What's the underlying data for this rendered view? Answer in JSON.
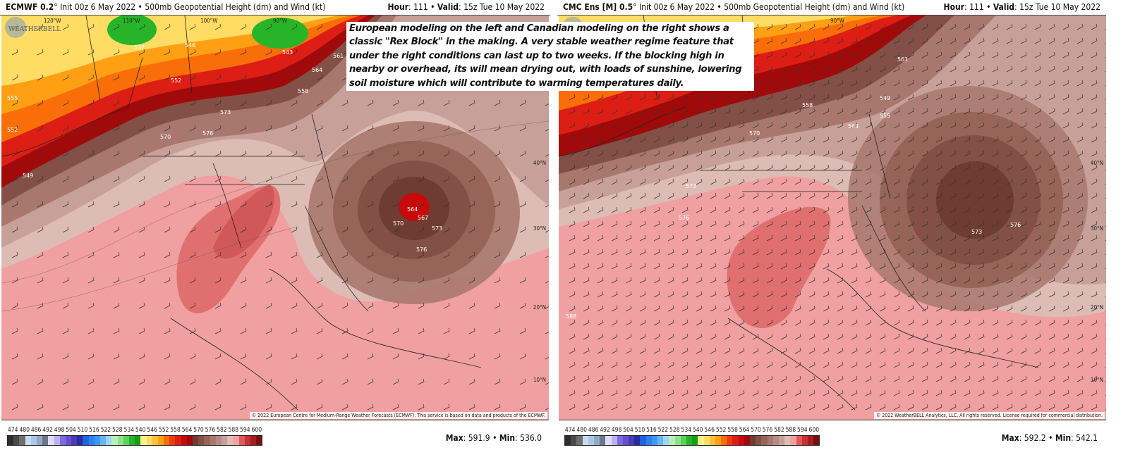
{
  "annotation": "European modeling on the left and Canadian modeling on the right shows a classic \"Rex Block\" in the making. A very stable weather regime feature that under the right conditions can last up to two weeks.  If the blocking high in nearby or overhead, its will mean drying out, with loads of sunshine, lowering soil moisture which will contribute to warming temperatures daily.",
  "colorbar": {
    "labels": [
      "474",
      "480",
      "486",
      "492",
      "498",
      "504",
      "510",
      "516",
      "522",
      "528",
      "534",
      "540",
      "546",
      "552",
      "558",
      "564",
      "570",
      "576",
      "582",
      "588",
      "594",
      "600"
    ],
    "colors": [
      "#2e2e2e",
      "#4a4a4a",
      "#6e6e6e",
      "#c4dcf4",
      "#aac6e2",
      "#94a8c0",
      "#68788c",
      "#dcdcfa",
      "#bab2f0",
      "#7c6ae0",
      "#6650d0",
      "#4a3ab8",
      "#2a2aa0",
      "#1e64e0",
      "#2a82ee",
      "#3c98f2",
      "#66b6f4",
      "#a0d4f8",
      "#b6f0b2",
      "#8ee08e",
      "#58d258",
      "#28b428",
      "#14a014",
      "#fff08c",
      "#ffdc64",
      "#ffbe3c",
      "#ffa014",
      "#fa6e0a",
      "#f03c0a",
      "#dc1e14",
      "#c80a0a",
      "#a00a0a",
      "#6e3c32",
      "#825046",
      "#966458",
      "#a8786e",
      "#b48c84",
      "#c8a09a",
      "#dcbcb4",
      "#f0a0a0",
      "#e05a5a",
      "#c83232",
      "#a81e1e",
      "#781010"
    ]
  },
  "left": {
    "model": "ECMWF 0.2",
    "resolution_suffix": "°",
    "init": "Init 00z 6 May 2022",
    "product": "• 500mb Geopotential Height (dm) and Wind (kt)",
    "hour_label": "Hour",
    "hour": ": 111 •",
    "valid_label": "Valid",
    "valid": ": 15z Tue 10 May 2022",
    "copyright": "© 2022 European Centre for Medium-Range Weather Forecasts (ECMWF). This service is based on data and products of the ECMWF.",
    "logo": "WEATHERBELL",
    "max_label": "Max",
    "max": ": 591.9 •",
    "min_label": "Min",
    "min": ": 536.0",
    "lon_labels": [
      "120°W",
      "110°W",
      "100°W",
      "90°W"
    ],
    "lat_labels": [
      "40°N",
      "30°N",
      "20°N",
      "10°N"
    ],
    "contour_labels": [
      "537",
      "543",
      "546",
      "552",
      "558",
      "561",
      "564",
      "570",
      "573",
      "576",
      "564",
      "567",
      "570",
      "573",
      "576",
      "549",
      "552",
      "555"
    ]
  },
  "right": {
    "model": "CMC Ens [M] 0.5",
    "resolution_suffix": "°",
    "init": "Init 00z 6 May 2022",
    "product": "• 500mb Geopotential Height (dm) and Wind (kt)",
    "hour_label": "Hour",
    "hour": ": 111 •",
    "valid_label": "Valid",
    "valid": ": 15z Tue 10 May 2022",
    "copyright": "© 2022 WeatherBELL Analytics, LLC. All rights reserved. License required for commercial distribution.",
    "logo": "WEATHERBELL",
    "max_label": "Max",
    "max": ": 592.2 •",
    "min_label": "Min",
    "min": ": 542.1",
    "lon_labels": [
      "90°W"
    ],
    "lat_labels": [
      "40°N",
      "30°N",
      "20°N",
      "10°N"
    ],
    "contour_labels": [
      "549",
      "555",
      "558",
      "561",
      "564",
      "570",
      "573",
      "576",
      "573",
      "576",
      "588"
    ]
  }
}
